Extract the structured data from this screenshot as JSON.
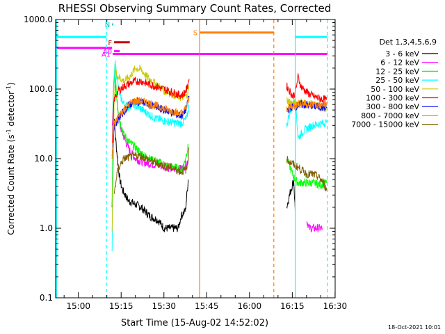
{
  "chart_data": {
    "type": "line",
    "title": "RHESSI Observing Summary Count Rates, Corrected",
    "xlabel": "Start Time (15-Aug-02 14:52:02)",
    "ylabel_main": "Corrected Count Rate (s",
    "ylabel_sup1": "-1",
    "ylabel_mid": " detector",
    "ylabel_sup2": "-1",
    "ylabel_end": ")",
    "y_scale": "log",
    "ylim": [
      0.1,
      1000
    ],
    "xlim_minutes": [
      0,
      98
    ],
    "x_ticks": [
      {
        "label": "15:00",
        "t": 7.97
      },
      {
        "label": "15:15",
        "t": 22.97
      },
      {
        "label": "15:30",
        "t": 37.97
      },
      {
        "label": "15:45",
        "t": 52.97
      },
      {
        "label": "16:00",
        "t": 67.97
      },
      {
        "label": "16:15",
        "t": 82.97
      },
      {
        "label": "16:30",
        "t": 97.97
      }
    ],
    "y_ticks": [
      {
        "label": "0.1",
        "v": 0.1
      },
      {
        "label": "1.0",
        "v": 1
      },
      {
        "label": "10.0",
        "v": 10
      },
      {
        "label": "100.0",
        "v": 100
      },
      {
        "label": "1000.0",
        "v": 1000
      }
    ],
    "legend_title": "Det 1,3,4,5,6,9",
    "legend_placement": "right",
    "timestamp": "18-Oct-2021 10:01",
    "series": [
      {
        "name": "3 - 6 keV",
        "color": "#000000",
        "segments": [
          [
            [
              19.8,
              2
            ],
            [
              20.5,
              40
            ],
            [
              21.0,
              20
            ],
            [
              21.8,
              9
            ],
            [
              22.5,
              5
            ],
            [
              23.5,
              3.5
            ],
            [
              25.5,
              2.5
            ],
            [
              28,
              2.2
            ],
            [
              30,
              2.0
            ],
            [
              33,
              1.5
            ],
            [
              36,
              1.3
            ],
            [
              38,
              1.0
            ],
            [
              41,
              1.0
            ],
            [
              43,
              1.0
            ],
            [
              44,
              1.5
            ],
            [
              45.5,
              1.8
            ],
            [
              46.5,
              5
            ]
          ],
          [
            [
              81,
              2
            ],
            [
              82,
              3
            ],
            [
              83.5,
              5
            ],
            [
              84,
              1.7
            ]
          ]
        ]
      },
      {
        "name": "6 - 12 keV",
        "color": "#ff00ff",
        "segments": [
          [
            [
              19.9,
              30
            ],
            [
              20.5,
              150
            ],
            [
              21,
              120
            ],
            [
              21.6,
              60
            ],
            [
              22.5,
              30
            ],
            [
              24,
              20
            ],
            [
              26,
              13
            ],
            [
              28,
              10
            ],
            [
              30,
              9
            ],
            [
              33,
              8.5
            ],
            [
              36,
              8.0
            ],
            [
              39,
              7.5
            ],
            [
              42,
              7.0
            ],
            [
              44,
              7.2
            ],
            [
              45.5,
              8
            ],
            [
              46.5,
              9.5
            ]
          ],
          [
            [
              88,
              1.3
            ],
            [
              89,
              1.0
            ],
            [
              93.5,
              1.0
            ]
          ]
        ]
      },
      {
        "name": "12 - 25 keV",
        "color": "#00ff00",
        "segments": [
          [
            [
              19.8,
              2
            ],
            [
              20.2,
              80
            ],
            [
              20.8,
              200
            ],
            [
              21.5,
              70
            ],
            [
              22.5,
              35
            ],
            [
              24,
              22
            ],
            [
              25.5,
              18
            ],
            [
              27.5,
              15
            ],
            [
              30,
              12
            ],
            [
              33,
              10
            ],
            [
              36,
              9.0
            ],
            [
              39,
              8.0
            ],
            [
              42,
              7.5
            ],
            [
              44.5,
              7.0
            ],
            [
              46.5,
              15
            ]
          ],
          [
            [
              81,
              10
            ],
            [
              82,
              8
            ],
            [
              83,
              6
            ],
            [
              84,
              5
            ],
            [
              85,
              4.5
            ],
            [
              87,
              4.5
            ],
            [
              90,
              4.5
            ],
            [
              93,
              4.2
            ],
            [
              95,
              4.5
            ]
          ]
        ]
      },
      {
        "name": "25 - 50 keV",
        "color": "#00ffff",
        "segments": [
          [
            [
              19.8,
              0.5
            ],
            [
              20.3,
              80
            ],
            [
              20.8,
              250
            ],
            [
              21.5,
              150
            ],
            [
              22.5,
              80
            ],
            [
              24,
              60
            ],
            [
              25.5,
              55
            ],
            [
              27,
              60
            ],
            [
              29,
              55
            ],
            [
              32,
              45
            ],
            [
              35,
              38
            ],
            [
              38,
              35
            ],
            [
              41,
              33
            ],
            [
              44,
              32
            ],
            [
              46,
              38
            ],
            [
              46.8,
              60
            ]
          ],
          [
            [
              81,
              30
            ],
            [
              82,
              45
            ],
            [
              83.2,
              60
            ],
            [
              84,
              80
            ],
            [
              85,
              20
            ],
            [
              87,
              25
            ],
            [
              90,
              30
            ],
            [
              93,
              32
            ],
            [
              95,
              33
            ]
          ]
        ]
      },
      {
        "name": "50 - 100 keV",
        "color": "#c8c800",
        "segments": [
          [
            [
              19.8,
              1
            ],
            [
              20.5,
              60
            ],
            [
              21,
              180
            ],
            [
              22,
              150
            ],
            [
              24,
              130
            ],
            [
              26,
              150
            ],
            [
              28,
              200
            ],
            [
              30,
              190
            ],
            [
              32,
              150
            ],
            [
              35,
              120
            ],
            [
              38,
              95
            ],
            [
              41,
              85
            ],
            [
              44,
              75
            ],
            [
              46,
              80
            ],
            [
              46.8,
              110
            ]
          ],
          [
            [
              81,
              70
            ],
            [
              82,
              65
            ],
            [
              84,
              60
            ],
            [
              86,
              65
            ],
            [
              90,
              60
            ],
            [
              93,
              55
            ],
            [
              95,
              52
            ]
          ]
        ]
      },
      {
        "name": "100 - 300 keV",
        "color": "#ff0000",
        "segments": [
          [
            [
              19.8,
              15
            ],
            [
              20.5,
              70
            ],
            [
              22,
              95
            ],
            [
              24,
              110
            ],
            [
              26,
              120
            ],
            [
              28,
              130
            ],
            [
              30,
              130
            ],
            [
              32,
              120
            ],
            [
              35,
              110
            ],
            [
              38,
              100
            ],
            [
              41,
              90
            ],
            [
              43,
              83
            ],
            [
              44.5,
              82
            ],
            [
              46,
              100
            ],
            [
              46.8,
              140
            ]
          ],
          [
            [
              81,
              110
            ],
            [
              82,
              95
            ],
            [
              83,
              80
            ],
            [
              84,
              85
            ],
            [
              85,
              150
            ],
            [
              86,
              110
            ],
            [
              88,
              90
            ],
            [
              90,
              80
            ],
            [
              93,
              72
            ],
            [
              95,
              70
            ]
          ]
        ]
      },
      {
        "name": "300 - 800 keV",
        "color": "#0000ff",
        "segments": [
          [
            [
              19.8,
              10
            ],
            [
              20.5,
              30
            ],
            [
              22,
              38
            ],
            [
              24,
              48
            ],
            [
              26,
              60
            ],
            [
              28,
              67
            ],
            [
              30,
              66
            ],
            [
              32,
              62
            ],
            [
              35,
              55
            ],
            [
              38,
              50
            ],
            [
              41,
              46
            ],
            [
              43,
              42
            ],
            [
              44.5,
              42
            ],
            [
              46,
              55
            ],
            [
              46.8,
              80
            ]
          ],
          [
            [
              81,
              50
            ],
            [
              83,
              55
            ],
            [
              86,
              60
            ],
            [
              90,
              58
            ],
            [
              93,
              55
            ],
            [
              95,
              55
            ]
          ]
        ]
      },
      {
        "name": "800 - 7000 keV",
        "color": "#ff8000",
        "segments": [
          [
            [
              19.8,
              10
            ],
            [
              20.5,
              30
            ],
            [
              22,
              40
            ],
            [
              24,
              52
            ],
            [
              26,
              62
            ],
            [
              28,
              68
            ],
            [
              30,
              67
            ],
            [
              32,
              64
            ],
            [
              35,
              58
            ],
            [
              38,
              52
            ],
            [
              41,
              48
            ],
            [
              43,
              45
            ],
            [
              44.5,
              45
            ],
            [
              46,
              55
            ],
            [
              46.8,
              75
            ]
          ],
          [
            [
              81,
              52
            ],
            [
              83,
              57
            ],
            [
              86,
              62
            ],
            [
              90,
              60
            ],
            [
              93,
              58
            ],
            [
              95,
              58
            ]
          ]
        ]
      },
      {
        "name": "7000 - 15000 keV",
        "color": "#806000",
        "segments": [
          [
            [
              20.5,
              3
            ],
            [
              21.5,
              6
            ],
            [
              22.5,
              8
            ],
            [
              24,
              10
            ],
            [
              26,
              10.5
            ],
            [
              28,
              11
            ],
            [
              30,
              11
            ],
            [
              32,
              10
            ],
            [
              34,
              9
            ],
            [
              36,
              8.5
            ],
            [
              38,
              8
            ],
            [
              40,
              7.5
            ],
            [
              42,
              7
            ],
            [
              44,
              6.5
            ],
            [
              46,
              7.0
            ],
            [
              46.8,
              14
            ]
          ],
          [
            [
              81,
              10
            ],
            [
              82,
              9
            ],
            [
              84,
              8
            ],
            [
              86,
              7
            ],
            [
              88,
              6
            ],
            [
              90,
              6
            ],
            [
              92,
              5.5
            ],
            [
              94,
              4.5
            ],
            [
              95,
              3.5
            ]
          ]
        ]
      }
    ],
    "state_bars": [
      {
        "label": "",
        "color": "#00ffff",
        "y": 560,
        "t0": 0,
        "t1": 17.8
      },
      {
        "label": "",
        "color": "#00ffff",
        "y": 560,
        "t0": 84.0,
        "t1": 95.3
      },
      {
        "label": "",
        "color": "#ff00ff",
        "y": 390,
        "t0": 0,
        "t1": 19.8
      },
      {
        "label": "A1",
        "color": "#ff00ff",
        "y": 320,
        "t0": 20.0,
        "t1": 95.3
      },
      {
        "label": "F",
        "color": "#c00000",
        "y": 470,
        "t0": 20.5,
        "t1": 26.0
      },
      {
        "label": "A0",
        "color": "#ff00ff",
        "y": 350,
        "t0": 20.5,
        "t1": 22.5
      },
      {
        "label": "N",
        "color": "#00c0c0",
        "y": 850,
        "t0": 19.8,
        "t1": 20.2
      },
      {
        "label": "S",
        "color": "#ff8000",
        "y": 650,
        "t0": 50.5,
        "t1": 76.5
      }
    ],
    "vlines": [
      {
        "t": 0.3,
        "color": "#00ffff",
        "style": "solid"
      },
      {
        "t": 17.8,
        "color": "#00ffff",
        "style": "dashed"
      },
      {
        "t": 84.0,
        "color": "#00ffff",
        "style": "solid"
      },
      {
        "t": 95.3,
        "color": "#00ffff",
        "style": "dashed"
      },
      {
        "t": 50.5,
        "color": "#ff8000",
        "style": "solid"
      },
      {
        "t": 76.5,
        "color": "#ff8000",
        "style": "dashed"
      }
    ]
  }
}
